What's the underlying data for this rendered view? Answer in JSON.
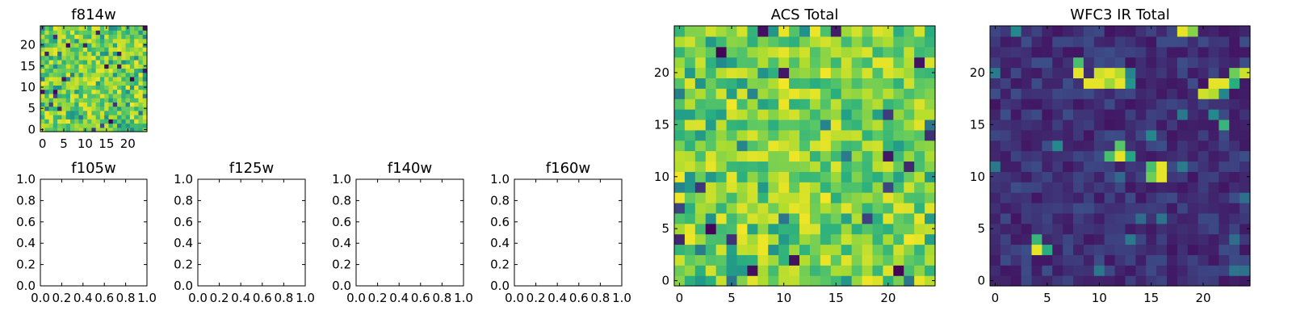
{
  "palette": {
    "viridis": [
      "#440154",
      "#3b528b",
      "#21918c",
      "#27ad81",
      "#5ec962",
      "#addc30",
      "#fde725"
    ],
    "axis": "#000000",
    "background": "#ffffff"
  },
  "chart_data": [
    {
      "id": "f814w",
      "type": "heatmap",
      "title": "f814w",
      "size": 25,
      "style": "noise",
      "seed": 17,
      "xticks": [
        0,
        5,
        10,
        15,
        20
      ],
      "yticks": [
        0,
        5,
        10,
        15,
        20
      ],
      "xtick_labels": [
        "0",
        "5",
        "10",
        "15",
        "20"
      ],
      "ytick_labels": [
        "0",
        "5",
        "10",
        "15",
        "20"
      ],
      "xlim": [
        -0.5,
        24.5
      ],
      "ylim": [
        -0.5,
        24.5
      ]
    },
    {
      "id": "f105w",
      "type": "empty",
      "title": "f105w",
      "xlim": [
        0,
        1
      ],
      "ylim": [
        0,
        1
      ],
      "xticks": [
        0,
        0.2,
        0.4,
        0.6,
        0.8,
        1.0
      ],
      "yticks": [
        0,
        0.2,
        0.4,
        0.6,
        0.8,
        1.0
      ],
      "xtick_labels": [
        "0.0",
        "0.2",
        "0.4",
        "0.6",
        "0.8",
        "1.0"
      ],
      "ytick_labels": [
        "0.0",
        "0.2",
        "0.4",
        "0.6",
        "0.8",
        "1.0"
      ]
    },
    {
      "id": "f125w",
      "type": "empty",
      "title": "f125w",
      "xlim": [
        0,
        1
      ],
      "ylim": [
        0,
        1
      ],
      "xticks": [
        0,
        0.2,
        0.4,
        0.6,
        0.8,
        1.0
      ],
      "yticks": [
        0,
        0.2,
        0.4,
        0.6,
        0.8,
        1.0
      ],
      "xtick_labels": [
        "0.0",
        "0.2",
        "0.4",
        "0.6",
        "0.8",
        "1.0"
      ],
      "ytick_labels": [
        "0.0",
        "0.2",
        "0.4",
        "0.6",
        "0.8",
        "1.0"
      ]
    },
    {
      "id": "f140w",
      "type": "empty",
      "title": "f140w",
      "xlim": [
        0,
        1
      ],
      "ylim": [
        0,
        1
      ],
      "xticks": [
        0,
        0.2,
        0.4,
        0.6,
        0.8,
        1.0
      ],
      "yticks": [
        0,
        0.2,
        0.4,
        0.6,
        0.8,
        1.0
      ],
      "xtick_labels": [
        "0.0",
        "0.2",
        "0.4",
        "0.6",
        "0.8",
        "1.0"
      ],
      "ytick_labels": [
        "0.0",
        "0.2",
        "0.4",
        "0.6",
        "0.8",
        "1.0"
      ]
    },
    {
      "id": "f160w",
      "type": "empty",
      "title": "f160w",
      "xlim": [
        0,
        1
      ],
      "ylim": [
        0,
        1
      ],
      "xticks": [
        0,
        0.2,
        0.4,
        0.6,
        0.8,
        1.0
      ],
      "yticks": [
        0,
        0.2,
        0.4,
        0.6,
        0.8,
        1.0
      ],
      "xtick_labels": [
        "0.0",
        "0.2",
        "0.4",
        "0.6",
        "0.8",
        "1.0"
      ],
      "ytick_labels": [
        "0.0",
        "0.2",
        "0.4",
        "0.6",
        "0.8",
        "1.0"
      ]
    },
    {
      "id": "acs-total",
      "type": "heatmap",
      "title": "ACS Total",
      "size": 25,
      "style": "noise",
      "seed": 91,
      "xticks": [
        0,
        5,
        10,
        15,
        20
      ],
      "yticks": [
        0,
        5,
        10,
        15,
        20
      ],
      "xtick_labels": [
        "0",
        "5",
        "10",
        "15",
        "20"
      ],
      "ytick_labels": [
        "0",
        "5",
        "10",
        "15",
        "20"
      ],
      "xlim": [
        -0.5,
        24.5
      ],
      "ylim": [
        -0.5,
        24.5
      ]
    },
    {
      "id": "wfc3-ir-total",
      "type": "heatmap",
      "title": "WFC3 IR Total",
      "size": 25,
      "style": "sources",
      "seed": 43,
      "hot_pixels": [
        {
          "x": 18,
          "y": 24,
          "v": 0.95
        },
        {
          "x": 19,
          "y": 24,
          "v": 0.75
        },
        {
          "x": 8,
          "y": 21,
          "v": 0.6
        },
        {
          "x": 8,
          "y": 20,
          "v": 0.95
        },
        {
          "x": 10,
          "y": 20,
          "v": 0.9
        },
        {
          "x": 11,
          "y": 20,
          "v": 0.95
        },
        {
          "x": 12,
          "y": 20,
          "v": 0.85
        },
        {
          "x": 13,
          "y": 20,
          "v": 0.3
        },
        {
          "x": 9,
          "y": 19,
          "v": 0.95
        },
        {
          "x": 10,
          "y": 19,
          "v": 0.95
        },
        {
          "x": 11,
          "y": 19,
          "v": 0.8
        },
        {
          "x": 12,
          "y": 19,
          "v": 0.95
        },
        {
          "x": 13,
          "y": 19,
          "v": 0.35
        },
        {
          "x": 21,
          "y": 19,
          "v": 0.95
        },
        {
          "x": 22,
          "y": 19,
          "v": 0.95
        },
        {
          "x": 23,
          "y": 19,
          "v": 0.5
        },
        {
          "x": 23,
          "y": 20,
          "v": 0.7
        },
        {
          "x": 24,
          "y": 20,
          "v": 0.9
        },
        {
          "x": 20,
          "y": 18,
          "v": 0.9
        },
        {
          "x": 21,
          "y": 18,
          "v": 0.85
        },
        {
          "x": 22,
          "y": 18,
          "v": 0.3
        },
        {
          "x": 22,
          "y": 15,
          "v": 0.55
        },
        {
          "x": 12,
          "y": 13,
          "v": 0.65
        },
        {
          "x": 11,
          "y": 12,
          "v": 0.6
        },
        {
          "x": 12,
          "y": 12,
          "v": 0.95
        },
        {
          "x": 13,
          "y": 12,
          "v": 0.45
        },
        {
          "x": 15,
          "y": 11,
          "v": 0.6
        },
        {
          "x": 16,
          "y": 11,
          "v": 0.95
        },
        {
          "x": 15,
          "y": 10,
          "v": 0.7
        },
        {
          "x": 16,
          "y": 10,
          "v": 0.95
        },
        {
          "x": 4,
          "y": 4,
          "v": 0.55
        },
        {
          "x": 4,
          "y": 3,
          "v": 0.95
        },
        {
          "x": 5,
          "y": 3,
          "v": 0.5
        }
      ],
      "xticks": [
        0,
        5,
        10,
        15,
        20
      ],
      "yticks": [
        0,
        5,
        10,
        15,
        20
      ],
      "xtick_labels": [
        "0",
        "5",
        "10",
        "15",
        "20"
      ],
      "ytick_labels": [
        "0",
        "5",
        "10",
        "15",
        "20"
      ],
      "xlim": [
        -0.5,
        24.5
      ],
      "ylim": [
        -0.5,
        24.5
      ]
    }
  ]
}
